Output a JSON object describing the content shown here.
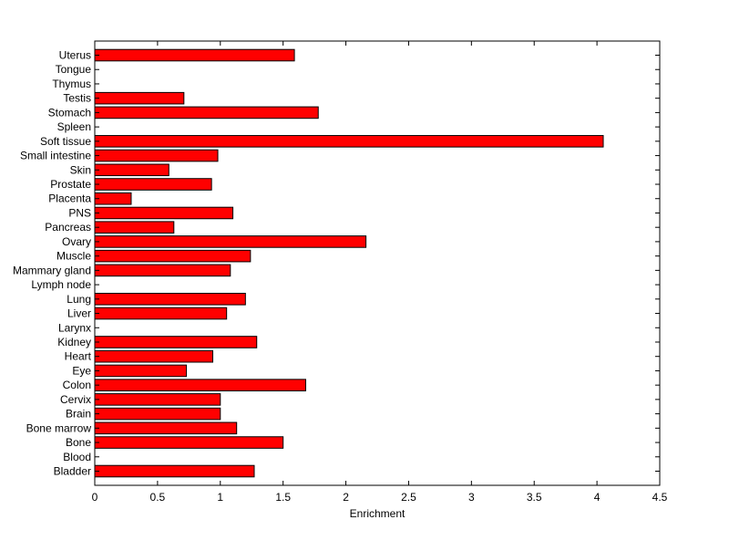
{
  "chart_data": {
    "type": "bar",
    "orientation": "horizontal",
    "categories": [
      "Uterus",
      "Tongue",
      "Thymus",
      "Testis",
      "Stomach",
      "Spleen",
      "Soft tissue",
      "Small intestine",
      "Skin",
      "Prostate",
      "Placenta",
      "PNS",
      "Pancreas",
      "Ovary",
      "Muscle",
      "Mammary gland",
      "Lymph node",
      "Lung",
      "Liver",
      "Larynx",
      "Kidney",
      "Heart",
      "Eye",
      "Colon",
      "Cervix",
      "Brain",
      "Bone marrow",
      "Bone",
      "Blood",
      "Bladder"
    ],
    "values": [
      1.59,
      0,
      0,
      0.71,
      1.78,
      0,
      4.05,
      0.98,
      0.59,
      0.93,
      0.29,
      1.1,
      0.63,
      2.16,
      1.24,
      1.08,
      0,
      1.2,
      1.05,
      0,
      1.29,
      0.94,
      0.73,
      1.68,
      1.0,
      1.0,
      1.13,
      1.5,
      0,
      1.27
    ],
    "xlabel": "Enrichment",
    "ylabel": "",
    "title": "",
    "xlim": [
      0,
      4.5
    ],
    "xticks": [
      "0",
      "0.5",
      "1",
      "1.5",
      "2",
      "2.5",
      "3",
      "3.5",
      "4",
      "4.5"
    ],
    "grid": false,
    "legend": "none",
    "bar_color": "#ff0000",
    "bar_edge_color": "#000000"
  }
}
